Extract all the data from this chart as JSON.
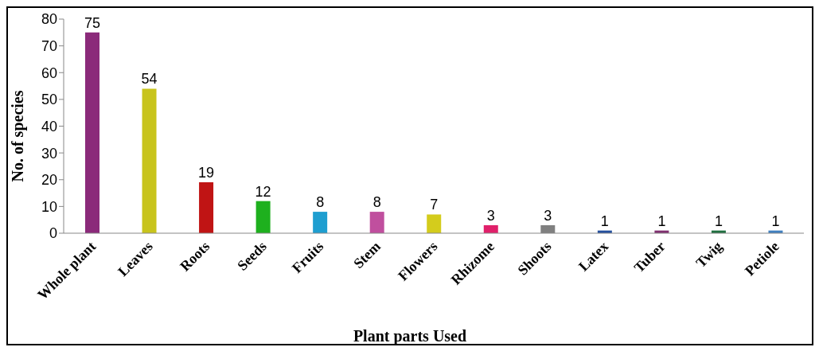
{
  "chart_data": {
    "type": "bar",
    "xlabel": "Plant parts Used",
    "ylabel": "No. of species",
    "categories": [
      "Whole plant",
      "Leaves",
      "Roots",
      "Seeds",
      "Fruits",
      "Stem",
      "Flowers",
      "Rhizome",
      "Shoots",
      "Latex",
      "Tuber",
      "Twig",
      "Petiole"
    ],
    "values": [
      75,
      54,
      19,
      12,
      8,
      8,
      7,
      3,
      3,
      1,
      1,
      1,
      1
    ],
    "colors": [
      "#8b2a7a",
      "#c8c41c",
      "#c01414",
      "#1eb01e",
      "#1e9ed0",
      "#c04f9e",
      "#d4cc1c",
      "#e0206a",
      "#808080",
      "#24509e",
      "#803070",
      "#207040",
      "#4080c0"
    ],
    "ylim": [
      0,
      80
    ],
    "yticks": [
      0,
      10,
      20,
      30,
      40,
      50,
      60,
      70,
      80
    ],
    "data_labels": true
  }
}
